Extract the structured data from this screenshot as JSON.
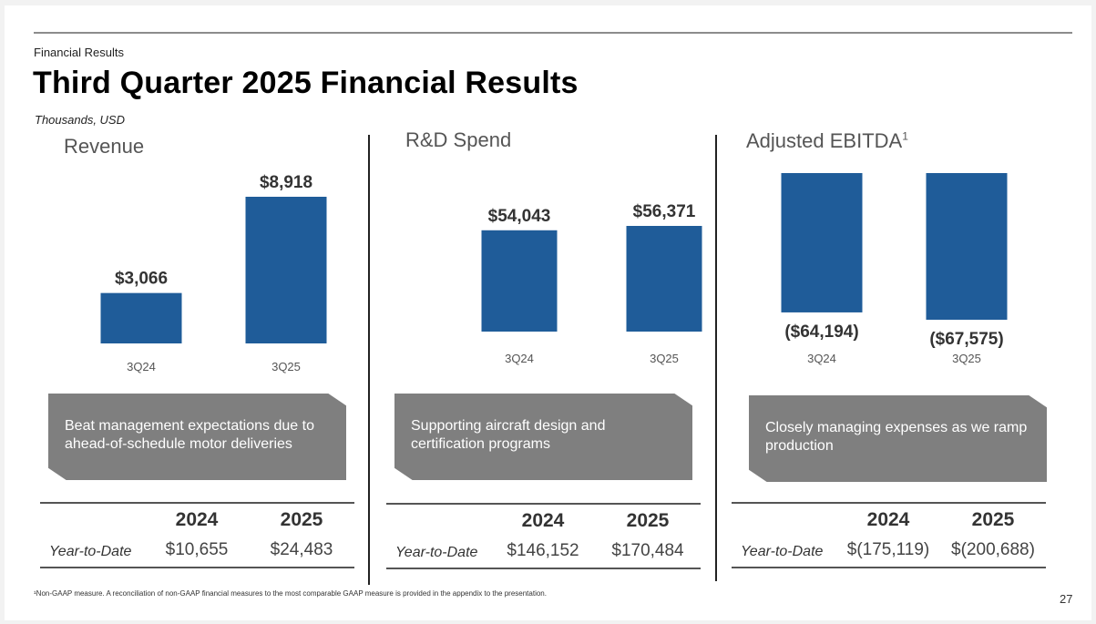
{
  "header": {
    "eyebrow": "Financial Results",
    "title": "Third Quarter 2025 Financial Results",
    "units": "Thousands, USD"
  },
  "colors": {
    "bar": "#1f5c99",
    "callout": "#7f7f7f"
  },
  "chart_data": [
    {
      "type": "bar",
      "title": "Revenue",
      "categories": [
        "3Q24",
        "3Q25"
      ],
      "values": [
        3066,
        8918
      ],
      "labels": [
        "$3,066",
        "$8,918"
      ],
      "xlabel": "",
      "ylabel": "Thousands, USD"
    },
    {
      "type": "bar",
      "title": "R&D Spend",
      "categories": [
        "3Q24",
        "3Q25"
      ],
      "values": [
        54043,
        56371
      ],
      "labels": [
        "$54,043",
        "$56,371"
      ],
      "xlabel": "",
      "ylabel": "Thousands, USD"
    },
    {
      "type": "bar",
      "title": "Adjusted EBITDA",
      "title_superscript": "1",
      "categories": [
        "3Q24",
        "3Q25"
      ],
      "values": [
        -64194,
        -67575
      ],
      "labels": [
        "($64,194)",
        "($67,575)"
      ],
      "xlabel": "",
      "ylabel": "Thousands, USD"
    }
  ],
  "panels": [
    {
      "callout": "Beat management expectations due to ahead-of-schedule motor deliveries",
      "ytd": {
        "headers": [
          "2024",
          "2025"
        ],
        "row_label": "Year-to-Date",
        "values": [
          "$10,655",
          "$24,483"
        ]
      }
    },
    {
      "callout": "Supporting aircraft design and certification programs",
      "ytd": {
        "headers": [
          "2024",
          "2025"
        ],
        "row_label": "Year-to-Date",
        "values": [
          "$146,152",
          "$170,484"
        ]
      }
    },
    {
      "callout": "Closely managing expenses as we ramp production",
      "ytd": {
        "headers": [
          "2024",
          "2025"
        ],
        "row_label": "Year-to-Date",
        "values": [
          "$(175,119)",
          "$(200,688)"
        ]
      }
    }
  ],
  "footnote": "¹Non-GAAP measure. A reconciliation of non-GAAP financial measures to the most comparable GAAP measure is provided in the appendix to the presentation.",
  "page_number": "27"
}
